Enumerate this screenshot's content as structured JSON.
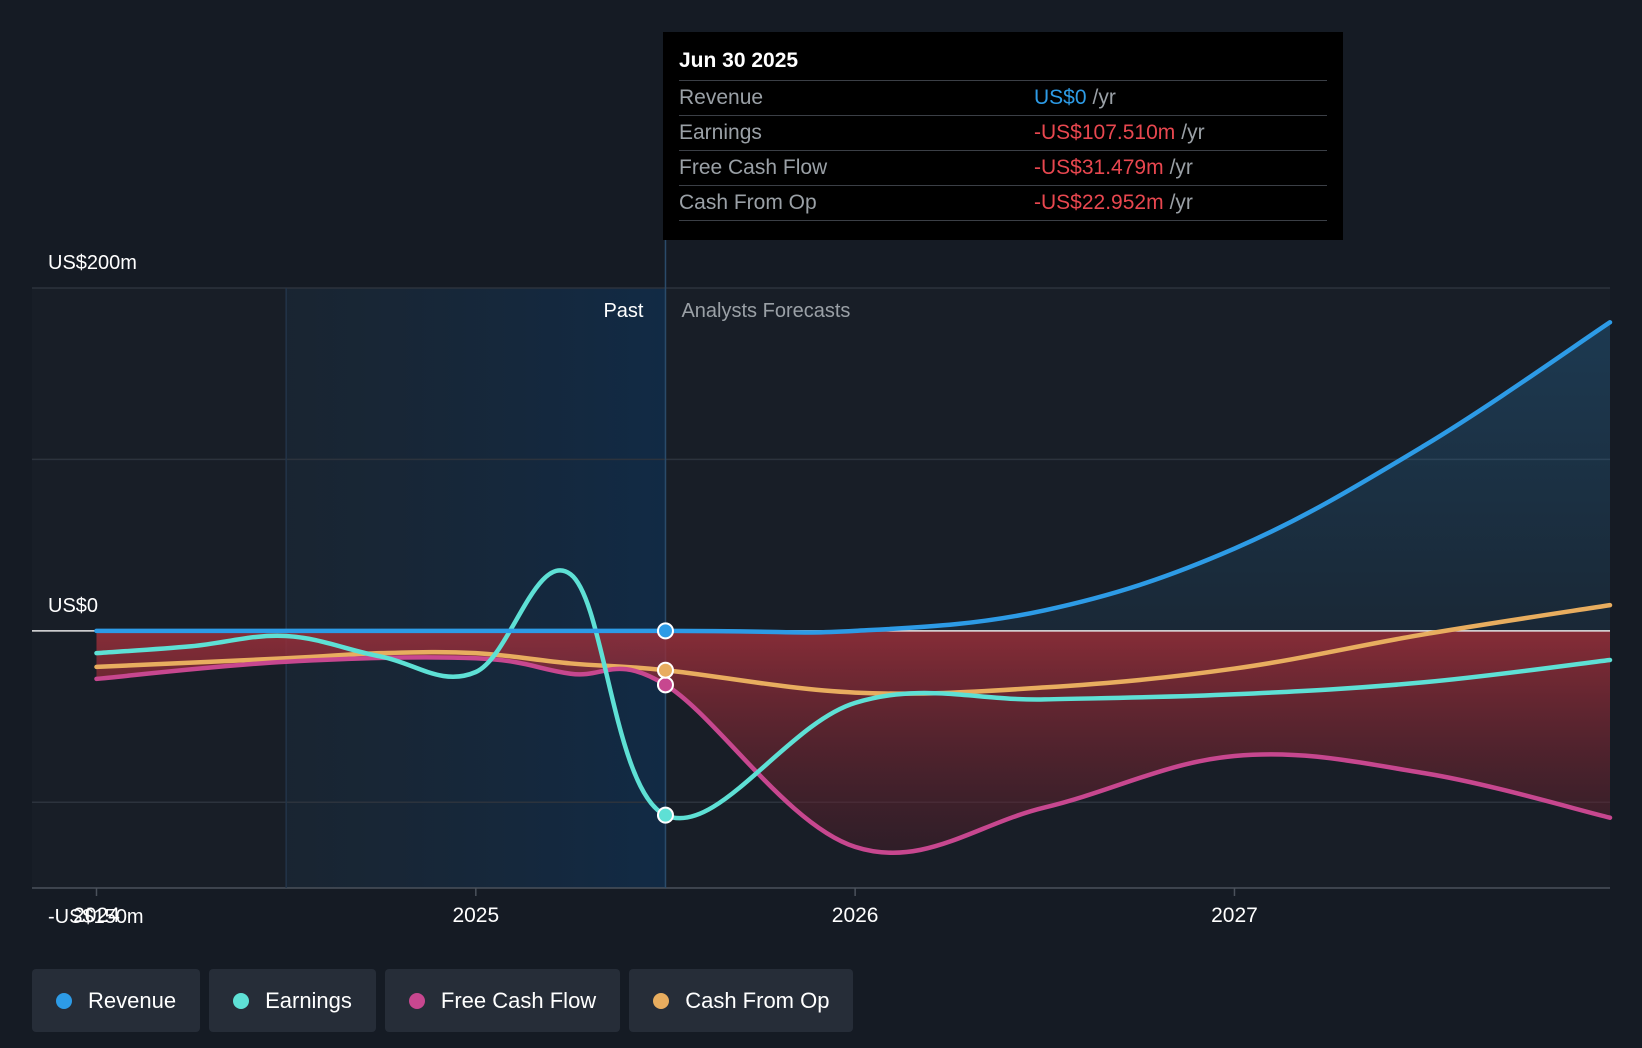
{
  "chart_data": {
    "type": "line",
    "ylim": [
      -150,
      200
    ],
    "yticks": [
      {
        "value": 200,
        "label": "US$200m"
      },
      {
        "value": 0,
        "label": "US$0"
      },
      {
        "value": -150,
        "label": "-US$150m"
      }
    ],
    "xlim": [
      2023.83,
      2027.99
    ],
    "xticks": [
      {
        "value": 2024,
        "label": "2024"
      },
      {
        "value": 2025,
        "label": "2025"
      },
      {
        "value": 2026,
        "label": "2026"
      },
      {
        "value": 2027,
        "label": "2027"
      }
    ],
    "grid": true,
    "past_start": 2024.5,
    "divider": 2025.5,
    "past_label": "Past",
    "forecast_label": "Analysts Forecasts",
    "legend_position": "bottom-left",
    "series": [
      {
        "name": "Revenue",
        "color": "#2d9be6",
        "points": [
          [
            2024.0,
            0
          ],
          [
            2025.5,
            0
          ],
          [
            2026.0,
            0
          ],
          [
            2026.5,
            12
          ],
          [
            2027.0,
            48
          ],
          [
            2027.5,
            108
          ],
          [
            2027.99,
            180
          ]
        ]
      },
      {
        "name": "Earnings",
        "color": "#5ee0d5",
        "points": [
          [
            2024.0,
            -13
          ],
          [
            2024.25,
            -9
          ],
          [
            2024.5,
            -3
          ],
          [
            2024.75,
            -15
          ],
          [
            2025.0,
            -24
          ],
          [
            2025.25,
            33
          ],
          [
            2025.5,
            -107.51
          ],
          [
            2026.0,
            -42
          ],
          [
            2026.5,
            -40
          ],
          [
            2027.0,
            -37
          ],
          [
            2027.5,
            -30
          ],
          [
            2027.99,
            -17
          ]
        ]
      },
      {
        "name": "Free Cash Flow",
        "color": "#c7478f",
        "points": [
          [
            2024.0,
            -28
          ],
          [
            2024.5,
            -18
          ],
          [
            2025.0,
            -16
          ],
          [
            2025.25,
            -25
          ],
          [
            2025.5,
            -31.479
          ],
          [
            2026.0,
            -126
          ],
          [
            2026.5,
            -103
          ],
          [
            2027.0,
            -73
          ],
          [
            2027.5,
            -83
          ],
          [
            2027.99,
            -109
          ]
        ]
      },
      {
        "name": "Cash From Op",
        "color": "#e8ad5f",
        "points": [
          [
            2024.0,
            -21
          ],
          [
            2024.5,
            -16
          ],
          [
            2024.75,
            -13
          ],
          [
            2025.0,
            -13
          ],
          [
            2025.25,
            -19
          ],
          [
            2025.5,
            -22.952
          ],
          [
            2026.0,
            -36
          ],
          [
            2026.5,
            -33
          ],
          [
            2027.0,
            -22
          ],
          [
            2027.5,
            -2
          ],
          [
            2027.99,
            15
          ]
        ]
      }
    ],
    "highlight_x": 2025.5
  },
  "tooltip": {
    "date": "Jun 30 2025",
    "rows": [
      {
        "label": "Revenue",
        "value": "US$0",
        "unit": "/yr",
        "color": "#2d9be6"
      },
      {
        "label": "Earnings",
        "value": "-US$107.510m",
        "unit": "/yr",
        "color": "#e8474f"
      },
      {
        "label": "Free Cash Flow",
        "value": "-US$31.479m",
        "unit": "/yr",
        "color": "#e8474f"
      },
      {
        "label": "Cash From Op",
        "value": "-US$22.952m",
        "unit": "/yr",
        "color": "#e8474f"
      }
    ]
  },
  "legend": [
    {
      "label": "Revenue",
      "color": "#2d9be6"
    },
    {
      "label": "Earnings",
      "color": "#5ee0d5"
    },
    {
      "label": "Free Cash Flow",
      "color": "#c7478f"
    },
    {
      "label": "Cash From Op",
      "color": "#e8ad5f"
    }
  ]
}
